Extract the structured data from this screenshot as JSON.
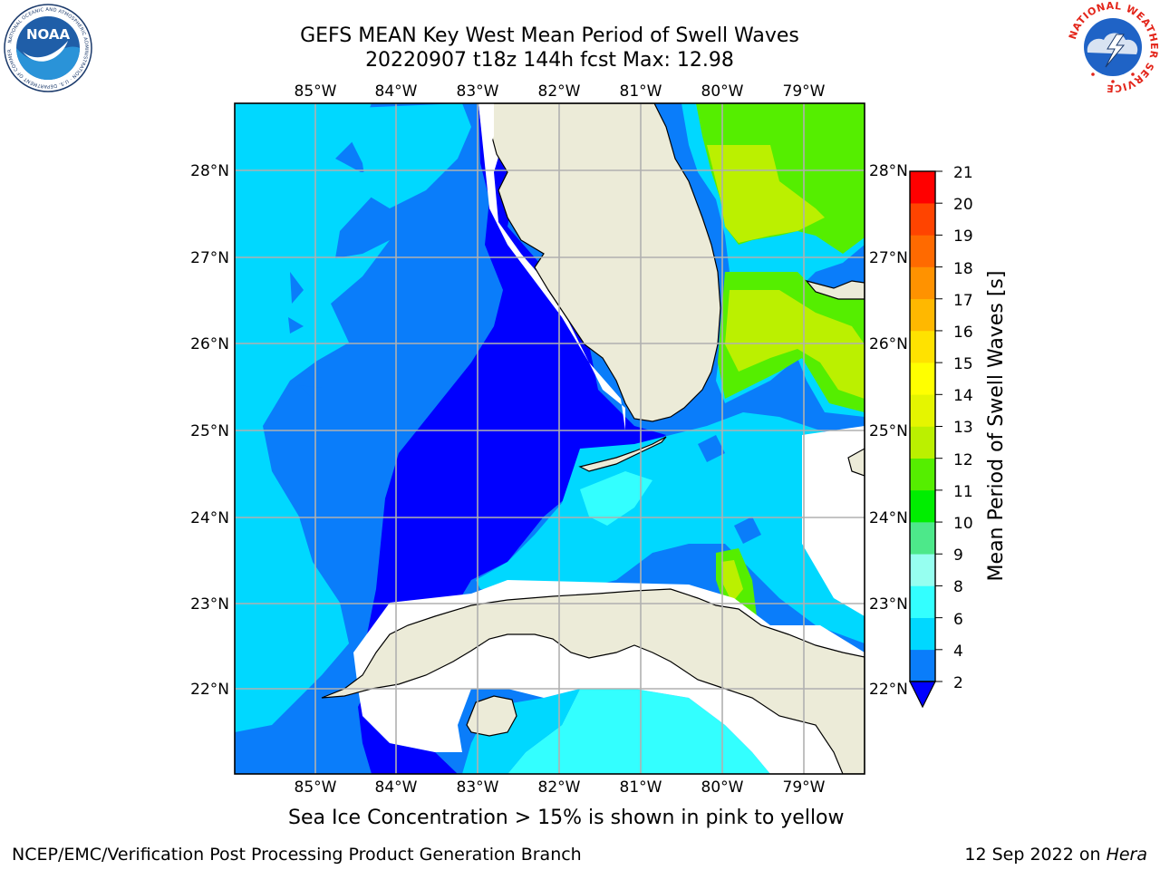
{
  "title": {
    "line1": "GEFS MEAN Key West Mean Period of Swell Waves",
    "line2": "20220907 t18z 144h fcst   Max: 12.98"
  },
  "map": {
    "lon_labels": [
      "85°W",
      "84°W",
      "83°W",
      "82°W",
      "81°W",
      "80°W",
      "79°W"
    ],
    "lat_labels_left": [
      "28°N",
      "27°N",
      "26°N",
      "25°N",
      "24°N",
      "23°N",
      "22°N"
    ],
    "lat_labels_right": [
      "28°N",
      "27°N",
      "26°N",
      "25°N",
      "24°N",
      "23°N",
      "22°N"
    ],
    "extent": {
      "lon_min": -86.0,
      "lon_max": -78.25,
      "lat_min": 21.0,
      "lat_max": 28.75
    },
    "colors": {
      "land": "#ecebd8",
      "ocean_missing": "#ffffff",
      "grid": "#b0b0b0",
      "coast": "#000000"
    }
  },
  "colorbar": {
    "label": "Mean Period of Swell Waves [s]",
    "ticks": [
      "21",
      "20",
      "19",
      "18",
      "17",
      "16",
      "15",
      "14",
      "13",
      "12",
      "11",
      "10",
      "9",
      "8",
      "6",
      "4",
      "2"
    ],
    "bins": [
      {
        "from": 2,
        "to": 4,
        "color": "#0a7dfa"
      },
      {
        "from": 4,
        "to": 6,
        "color": "#00d8ff"
      },
      {
        "from": 6,
        "to": 8,
        "color": "#33ffff"
      },
      {
        "from": 8,
        "to": 9,
        "color": "#96fff0"
      },
      {
        "from": 9,
        "to": 10,
        "color": "#4de88a"
      },
      {
        "from": 10,
        "to": 11,
        "color": "#00ee00"
      },
      {
        "from": 11,
        "to": 12,
        "color": "#55ee00"
      },
      {
        "from": 12,
        "to": 13,
        "color": "#bbf000"
      },
      {
        "from": 13,
        "to": 14,
        "color": "#e5f500"
      },
      {
        "from": 14,
        "to": 15,
        "color": "#ffff00"
      },
      {
        "from": 15,
        "to": 16,
        "color": "#ffe200"
      },
      {
        "from": 16,
        "to": 17,
        "color": "#ffb800"
      },
      {
        "from": 17,
        "to": 18,
        "color": "#ff9200"
      },
      {
        "from": 18,
        "to": 19,
        "color": "#ff6a00"
      },
      {
        "from": 19,
        "to": 20,
        "color": "#ff4400"
      },
      {
        "from": 20,
        "to": 21,
        "color": "#ff0000"
      }
    ],
    "under_color": "#0000ff"
  },
  "footer": {
    "sea_ice_note": "Sea Ice Concentration > 15% is shown in pink to yellow",
    "branch": "NCEP/EMC/Verification Post Processing Product Generation Branch",
    "date": "12 Sep 2022 on ",
    "host": "Hera"
  },
  "logos": {
    "noaa": {
      "text": "NOAA",
      "ring_text": "NATIONAL OCEANIC AND ATMOSPHERIC ADMINISTRATION · U.S. DEPARTMENT OF COMMERCE"
    },
    "nws": {
      "ring_text": "NATIONAL WEATHER SERVICE"
    }
  }
}
